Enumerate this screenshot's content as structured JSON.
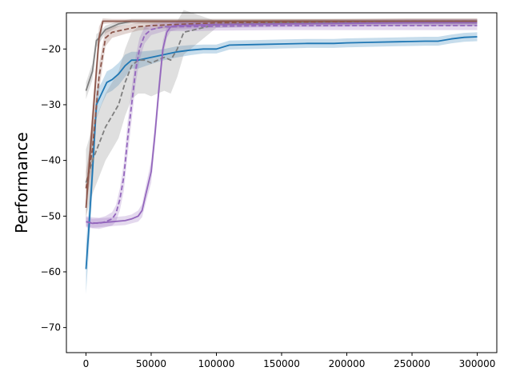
{
  "chart_data": {
    "type": "line",
    "title": "",
    "xlabel": "",
    "ylabel": "Performance",
    "xlim": [
      -15000,
      315000
    ],
    "ylim": [
      -74.5,
      -13.5
    ],
    "xticks": [
      0,
      50000,
      100000,
      150000,
      200000,
      250000,
      300000
    ],
    "yticks": [
      -70,
      -60,
      -50,
      -40,
      -30,
      -20
    ],
    "grid": false,
    "legend": "none",
    "series": [
      {
        "color": "#1f77b4",
        "linestyle": "solid",
        "x": [
          0,
          2000,
          5000,
          8000,
          12000,
          16000,
          20000,
          25000,
          30000,
          35000,
          40000,
          50000,
          60000,
          70000,
          80000,
          90000,
          100000,
          110000,
          130000,
          150000,
          170000,
          190000,
          200000,
          220000,
          240000,
          260000,
          270000,
          280000,
          290000,
          300000
        ],
        "y": [
          -59.5,
          -53,
          -42,
          -30,
          -28,
          -26,
          -25.5,
          -24.5,
          -23,
          -22,
          -22,
          -21.5,
          -21,
          -20.5,
          -20.2,
          -20,
          -20,
          -19.3,
          -19.2,
          -19.1,
          -19,
          -19,
          -18.9,
          -18.8,
          -18.7,
          -18.6,
          -18.6,
          -18.2,
          -17.9,
          -17.8
        ],
        "band": [
          4.5,
          4,
          3.5,
          2.5,
          2,
          2,
          2,
          2,
          2,
          1.5,
          1.5,
          1.2,
          1,
          1,
          0.9,
          0.8,
          0.8,
          0.8,
          0.8,
          0.8,
          0.8,
          0.8,
          0.8,
          0.8,
          0.8,
          0.8,
          0.8,
          0.8,
          0.8,
          0.8
        ]
      },
      {
        "color": "#7f7f7f",
        "linestyle": "solid",
        "x": [
          0,
          5000,
          8000,
          10000,
          15000,
          25000,
          35000,
          50000,
          75000,
          100000,
          150000,
          200000,
          250000,
          300000
        ],
        "y": [
          -27.5,
          -24,
          -18.5,
          -18,
          -16.5,
          -15.5,
          -15,
          -15,
          -15,
          -15,
          -15,
          -15,
          -15,
          -15
        ],
        "band": [
          1.5,
          1.5,
          1.2,
          1,
          0.7,
          0.5,
          0.4,
          0.4,
          0.4,
          0.4,
          0.4,
          0.4,
          0.4,
          0.4
        ]
      },
      {
        "color": "#7f7f7f",
        "linestyle": "dashed",
        "x": [
          0,
          5000,
          10000,
          15000,
          20000,
          25000,
          30000,
          35000,
          40000,
          45000,
          50000,
          55000,
          60000,
          65000,
          70000,
          75000,
          100000,
          150000,
          200000,
          250000,
          300000
        ],
        "y": [
          -44,
          -40,
          -37,
          -34,
          -32,
          -30,
          -26,
          -23,
          -22,
          -22,
          -22.5,
          -22,
          -21.5,
          -22,
          -20,
          -17,
          -15.6,
          -15.3,
          -15.3,
          -15.3,
          -15.3
        ],
        "band": [
          6,
          6,
          6,
          6,
          6,
          6,
          6,
          6,
          6,
          6,
          6,
          6,
          6,
          6,
          5,
          4,
          0.6,
          0.5,
          0.5,
          0.5,
          0.5
        ]
      },
      {
        "color": "#8c564b",
        "linestyle": "solid",
        "x": [
          0,
          5000,
          10000,
          13000,
          20000,
          50000,
          100000,
          150000,
          200000,
          250000,
          300000
        ],
        "y": [
          -48.5,
          -33,
          -18,
          -15,
          -15,
          -15,
          -15,
          -15,
          -15,
          -15,
          -15
        ],
        "band": [
          3,
          3,
          2,
          0.5,
          0.4,
          0.4,
          0.4,
          0.4,
          0.4,
          0.4,
          0.4
        ]
      },
      {
        "color": "#8c564b",
        "linestyle": "dashed",
        "x": [
          0,
          5000,
          10000,
          15000,
          20000,
          30000,
          40000,
          50000,
          70000,
          100000,
          150000,
          200000,
          250000,
          300000
        ],
        "y": [
          -45,
          -38,
          -25,
          -18,
          -17,
          -16.5,
          -16,
          -15.8,
          -15.6,
          -15.3,
          -15.2,
          -15.1,
          -15,
          -15
        ],
        "band": [
          3,
          3,
          2.5,
          1.5,
          1,
          0.8,
          0.7,
          0.6,
          0.6,
          0.5,
          0.5,
          0.5,
          0.5,
          0.5
        ]
      },
      {
        "color": "#9467bd",
        "linestyle": "solid",
        "x": [
          0,
          5000,
          10000,
          20000,
          30000,
          35000,
          40000,
          43000,
          46000,
          50000,
          53000,
          56000,
          59000,
          62000,
          65000,
          70000,
          100000,
          150000,
          200000,
          250000,
          300000
        ],
        "y": [
          -51,
          -51.3,
          -51.2,
          -51,
          -50.8,
          -50.5,
          -50,
          -49,
          -46,
          -42,
          -35,
          -27,
          -20,
          -17,
          -16,
          -15.8,
          -15.6,
          -15.5,
          -15.4,
          -15.3,
          -15.3
        ],
        "band": [
          0.8,
          0.8,
          0.8,
          0.8,
          0.8,
          0.8,
          1,
          1.2,
          1.5,
          2,
          2,
          2,
          1.5,
          1,
          0.8,
          0.7,
          0.6,
          0.6,
          0.6,
          0.6,
          0.6
        ]
      },
      {
        "color": "#9467bd",
        "linestyle": "dashed",
        "x": [
          0,
          5000,
          10000,
          15000,
          20000,
          23000,
          26000,
          29000,
          32000,
          35000,
          38000,
          41000,
          45000,
          50000,
          60000,
          80000,
          100000,
          150000,
          200000,
          250000,
          300000
        ],
        "y": [
          -51,
          -51.2,
          -51.3,
          -51,
          -50.5,
          -49.5,
          -47,
          -43,
          -36,
          -30,
          -24,
          -20,
          -17.5,
          -16.5,
          -16,
          -16,
          -15.9,
          -15.8,
          -15.8,
          -15.8,
          -15.8
        ],
        "band": [
          1,
          1,
          1,
          1,
          1.2,
          1.5,
          2,
          2.5,
          3,
          3,
          2.5,
          2,
          1.5,
          1,
          0.8,
          0.8,
          0.8,
          0.8,
          0.8,
          0.8,
          0.8
        ]
      }
    ]
  }
}
